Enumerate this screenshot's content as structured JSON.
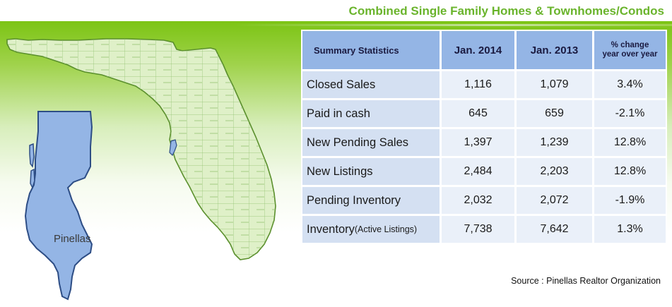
{
  "title": "Combined Single Family Homes & Townhomes/Condos",
  "map": {
    "inset_label": "Pinellas",
    "colors": {
      "state_fill": "#dff0c8",
      "state_stroke": "#5a8f2c",
      "county_fill": "#94b5e5",
      "county_stroke": "#2d4d85"
    }
  },
  "table": {
    "headers": {
      "label": "Summary Statistics",
      "col_2014": "Jan. 2014",
      "col_2013": "Jan. 2013",
      "change_line1": "% change",
      "change_line2": "year over year"
    },
    "rows": [
      {
        "label": "Closed Sales",
        "label_suffix": "",
        "v2014": "1,116",
        "v2013": "1,079",
        "change": "3.4%"
      },
      {
        "label": "Paid in cash",
        "label_suffix": "",
        "v2014": "645",
        "v2013": "659",
        "change": "-2.1%"
      },
      {
        "label": "New Pending Sales",
        "label_suffix": "",
        "v2014": "1,397",
        "v2013": "1,239",
        "change": "12.8%"
      },
      {
        "label": "New Listings",
        "label_suffix": "",
        "v2014": "2,484",
        "v2013": "2,203",
        "change": "12.8%"
      },
      {
        "label": "Pending Inventory",
        "label_suffix": "",
        "v2014": "2,032",
        "v2013": "2,072",
        "change": "-1.9%"
      },
      {
        "label": "Inventory",
        "label_suffix": "(Active Listings)",
        "v2014": "7,738",
        "v2013": "7,642",
        "change": "1.3%"
      }
    ],
    "colors": {
      "header_bg": "#94b5e5",
      "label_bg": "#d4e0f2",
      "value_bg": "#eaf0f9"
    }
  },
  "source": "Source : Pinellas Realtor Organization",
  "colors": {
    "accent_green": "#6ab42c"
  }
}
